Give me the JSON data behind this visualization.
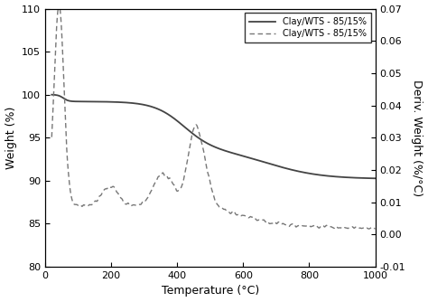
{
  "title": "",
  "xlabel": "Temperature (°C)",
  "ylabel_left": "Weight (%)",
  "ylabel_right": "Deriv. Weight (%/°C)",
  "xlim": [
    0,
    1000
  ],
  "ylim_left": [
    80,
    110
  ],
  "ylim_right": [
    -0.01,
    0.07
  ],
  "xticks": [
    0,
    200,
    400,
    600,
    800,
    1000
  ],
  "yticks_left": [
    80,
    85,
    90,
    95,
    100,
    105,
    110
  ],
  "yticks_right": [
    -0.01,
    0.0,
    0.01,
    0.02,
    0.03,
    0.04,
    0.05,
    0.06,
    0.07
  ],
  "legend_entries": [
    "Clay/WTS - 85/15%",
    "Clay/WTS - 85/15%"
  ],
  "line_solid_color": "#444444",
  "line_dashed_color": "#777777",
  "background_color": "#ffffff",
  "figsize": [
    4.74,
    3.34
  ],
  "dpi": 100
}
